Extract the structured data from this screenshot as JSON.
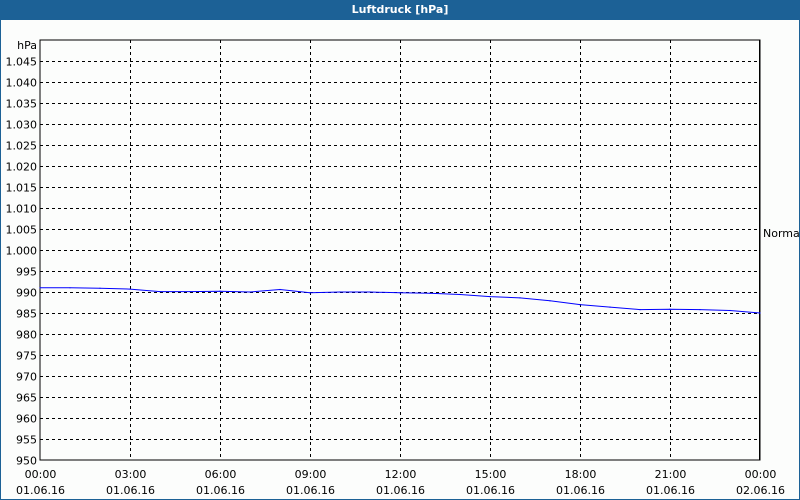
{
  "chart_data": {
    "type": "line",
    "title": "Luftdruck [hPa]",
    "ylabel": "hPa",
    "ylim": [
      950,
      1050
    ],
    "y_ticks": [
      "950",
      "955",
      "960",
      "965",
      "970",
      "975",
      "980",
      "985",
      "990",
      "995",
      "1.000",
      "1.005",
      "1.010",
      "1.015",
      "1.020",
      "1.025",
      "1.030",
      "1.035",
      "1.040",
      "1.045"
    ],
    "x_range": [
      "01.06.16 00:00",
      "02.06.16 00:00"
    ],
    "x_ticks": [
      {
        "time": "00:00",
        "date": "01.06.16"
      },
      {
        "time": "03:00",
        "date": "01.06.16"
      },
      {
        "time": "06:00",
        "date": "01.06.16"
      },
      {
        "time": "09:00",
        "date": "01.06.16"
      },
      {
        "time": "12:00",
        "date": "01.06.16"
      },
      {
        "time": "15:00",
        "date": "01.06.16"
      },
      {
        "time": "18:00",
        "date": "01.06.16"
      },
      {
        "time": "21:00",
        "date": "01.06.16"
      },
      {
        "time": "00:00",
        "date": "02.06.16"
      }
    ],
    "grid": true,
    "series_color": "#0000ff",
    "x_hours": [
      0,
      1,
      2,
      3,
      4,
      5,
      6,
      7,
      8,
      9,
      10,
      11,
      12,
      13,
      14,
      15,
      16,
      17,
      18,
      19,
      20,
      21,
      22,
      23,
      24
    ],
    "values": [
      991.0,
      991.0,
      990.9,
      990.7,
      990.1,
      990.1,
      990.2,
      990.0,
      990.6,
      989.8,
      990.0,
      990.0,
      989.8,
      989.7,
      989.4,
      988.9,
      988.6,
      987.9,
      987.0,
      986.4,
      985.8,
      985.9,
      985.8,
      985.6,
      985.0
    ],
    "annotation": {
      "text": "Normal",
      "value": 1004
    }
  }
}
